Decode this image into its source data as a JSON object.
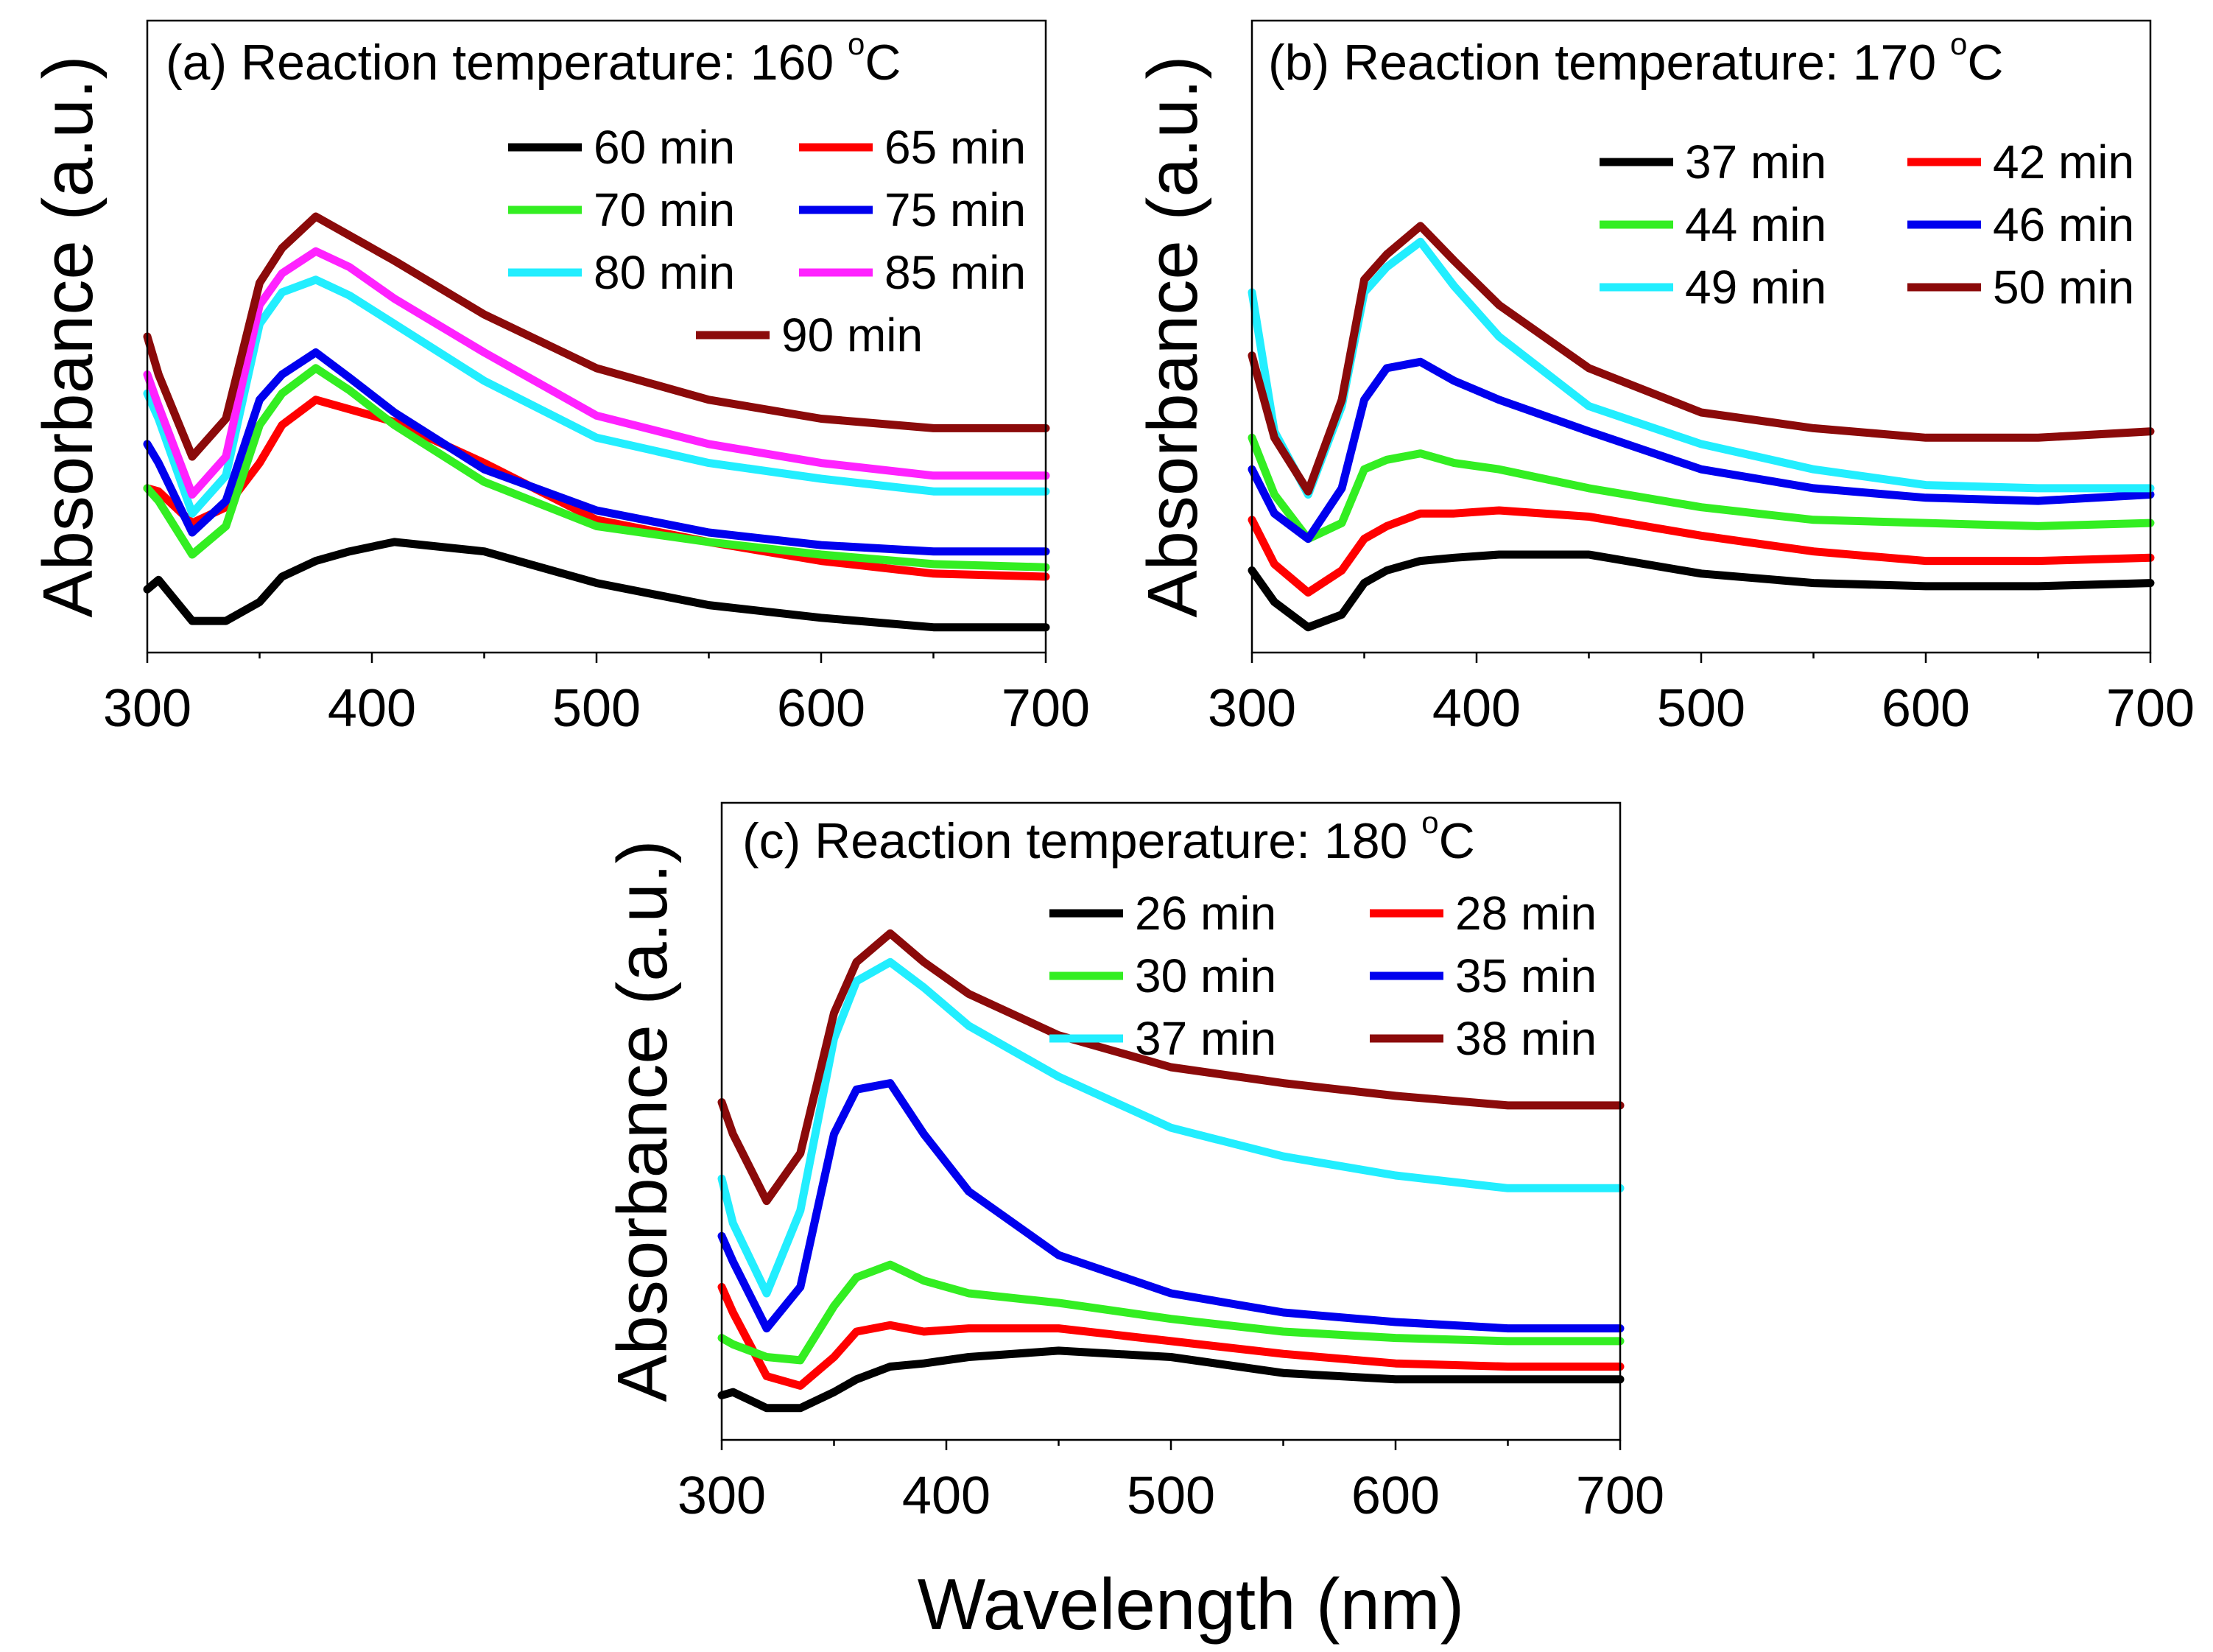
{
  "figure": {
    "y_label": "Absorbance (a.u.)",
    "x_label": "Wavelength (nm)",
    "title_unit": "C",
    "degree_symbol": "o"
  },
  "colors": {
    "black": "#000000",
    "red": "#ff0000",
    "green": "#33ee22",
    "blue": "#0000ee",
    "cyan": "#22eeff",
    "magenta": "#ff22ff",
    "darkred": "#8b0a0a"
  },
  "chart_data": [
    {
      "type": "line",
      "title": "(a) Reaction temperature: 160",
      "xlabel": "Wavelength (nm)",
      "ylabel": "Absorbance (a.u.)",
      "xlim": [
        300,
        700
      ],
      "xticks": [
        300,
        400,
        500,
        600,
        700
      ],
      "tick_labels": [
        "300",
        "400",
        "500",
        "600",
        "700"
      ],
      "ylim": [
        0,
        10
      ],
      "x": [
        300,
        305,
        320,
        335,
        350,
        360,
        375,
        390,
        410,
        450,
        500,
        550,
        600,
        650,
        700
      ],
      "series": [
        {
          "name": "60 min",
          "color": "#000000",
          "values": [
            1.0,
            1.15,
            0.5,
            0.5,
            0.8,
            1.2,
            1.45,
            1.6,
            1.75,
            1.6,
            1.1,
            0.75,
            0.55,
            0.4,
            0.4
          ]
        },
        {
          "name": "65 min",
          "color": "#ff0000",
          "values": [
            2.6,
            2.55,
            2.05,
            2.3,
            3.0,
            3.6,
            4.0,
            3.85,
            3.65,
            3.0,
            2.1,
            1.75,
            1.45,
            1.25,
            1.2
          ]
        },
        {
          "name": "70 min",
          "color": "#33ee22",
          "values": [
            2.6,
            2.4,
            1.55,
            2.0,
            3.6,
            4.1,
            4.5,
            4.15,
            3.6,
            2.7,
            2.0,
            1.75,
            1.55,
            1.4,
            1.35
          ]
        },
        {
          "name": "75 min",
          "color": "#0000ee",
          "values": [
            3.3,
            3.0,
            1.9,
            2.4,
            4.0,
            4.4,
            4.75,
            4.35,
            3.8,
            2.9,
            2.25,
            1.9,
            1.7,
            1.6,
            1.6
          ]
        },
        {
          "name": "80 min",
          "color": "#22eeff",
          "values": [
            4.1,
            3.7,
            2.2,
            2.8,
            5.2,
            5.7,
            5.9,
            5.65,
            5.2,
            4.3,
            3.4,
            3.0,
            2.75,
            2.55,
            2.55
          ]
        },
        {
          "name": "85 min",
          "color": "#ff22ff",
          "values": [
            4.4,
            3.9,
            2.5,
            3.1,
            5.5,
            6.0,
            6.35,
            6.1,
            5.6,
            4.75,
            3.75,
            3.3,
            3.0,
            2.8,
            2.8
          ]
        },
        {
          "name": "90 min",
          "color": "#8b0a0a",
          "values": [
            5.0,
            4.4,
            3.1,
            3.7,
            5.85,
            6.4,
            6.9,
            6.6,
            6.2,
            5.35,
            4.5,
            4.0,
            3.7,
            3.55,
            3.55
          ]
        }
      ]
    },
    {
      "type": "line",
      "title": "(b) Reaction temperature: 170",
      "xlabel": "Wavelength (nm)",
      "ylabel": "Absorbance (a.u.)",
      "xlim": [
        300,
        700
      ],
      "xticks": [
        300,
        400,
        500,
        600,
        700
      ],
      "tick_labels": [
        "300",
        "400",
        "500",
        "600",
        "700"
      ],
      "ylim": [
        0,
        10
      ],
      "x": [
        300,
        310,
        325,
        340,
        350,
        360,
        375,
        390,
        410,
        450,
        500,
        550,
        600,
        650,
        700
      ],
      "series": [
        {
          "name": "37 min",
          "color": "#000000",
          "values": [
            1.3,
            0.8,
            0.4,
            0.6,
            1.1,
            1.3,
            1.45,
            1.5,
            1.55,
            1.55,
            1.25,
            1.1,
            1.05,
            1.05,
            1.1
          ]
        },
        {
          "name": "42 min",
          "color": "#ff0000",
          "values": [
            2.1,
            1.4,
            0.95,
            1.3,
            1.8,
            2.0,
            2.2,
            2.2,
            2.25,
            2.15,
            1.85,
            1.6,
            1.45,
            1.45,
            1.5
          ]
        },
        {
          "name": "44 min",
          "color": "#33ee22",
          "values": [
            3.4,
            2.5,
            1.8,
            2.05,
            2.9,
            3.05,
            3.15,
            3.0,
            2.9,
            2.6,
            2.3,
            2.1,
            2.05,
            2.0,
            2.05
          ]
        },
        {
          "name": "46 min",
          "color": "#0000ee",
          "values": [
            2.9,
            2.2,
            1.8,
            2.6,
            4.0,
            4.5,
            4.6,
            4.3,
            4.0,
            3.5,
            2.9,
            2.6,
            2.45,
            2.4,
            2.5
          ]
        },
        {
          "name": "49 min",
          "color": "#22eeff",
          "values": [
            5.7,
            3.5,
            2.5,
            3.9,
            5.7,
            6.1,
            6.5,
            5.8,
            5.0,
            3.9,
            3.3,
            2.9,
            2.65,
            2.6,
            2.6
          ]
        },
        {
          "name": "50 min",
          "color": "#8b0a0a",
          "values": [
            4.7,
            3.4,
            2.55,
            4.0,
            5.9,
            6.3,
            6.75,
            6.2,
            5.5,
            4.5,
            3.8,
            3.55,
            3.4,
            3.4,
            3.5
          ]
        }
      ]
    },
    {
      "type": "line",
      "title": "(c) Reaction temperature: 180",
      "xlabel": "Wavelength (nm)",
      "ylabel": "Absorbance (a.u.)",
      "xlim": [
        300,
        700
      ],
      "xticks": [
        300,
        400,
        500,
        600,
        700
      ],
      "tick_labels": [
        "300",
        "400",
        "500",
        "600",
        "700"
      ],
      "ylim": [
        0,
        10
      ],
      "x": [
        300,
        305,
        320,
        335,
        350,
        360,
        375,
        390,
        410,
        450,
        500,
        550,
        600,
        650,
        700
      ],
      "series": [
        {
          "name": "26 min",
          "color": "#000000",
          "values": [
            0.7,
            0.75,
            0.5,
            0.5,
            0.75,
            0.95,
            1.15,
            1.2,
            1.3,
            1.4,
            1.3,
            1.05,
            0.95,
            0.95,
            0.95
          ]
        },
        {
          "name": "28 min",
          "color": "#ff0000",
          "values": [
            2.4,
            2.0,
            1.0,
            0.85,
            1.3,
            1.7,
            1.8,
            1.7,
            1.75,
            1.75,
            1.55,
            1.35,
            1.2,
            1.15,
            1.15
          ]
        },
        {
          "name": "30 min",
          "color": "#33ee22",
          "values": [
            1.6,
            1.5,
            1.3,
            1.25,
            2.1,
            2.55,
            2.75,
            2.5,
            2.3,
            2.15,
            1.9,
            1.7,
            1.6,
            1.55,
            1.55
          ]
        },
        {
          "name": "35 min",
          "color": "#0000ee",
          "values": [
            3.2,
            2.8,
            1.75,
            2.4,
            4.8,
            5.5,
            5.6,
            4.8,
            3.9,
            2.9,
            2.3,
            2.0,
            1.85,
            1.75,
            1.75
          ]
        },
        {
          "name": "37 min",
          "color": "#22eeff",
          "values": [
            4.1,
            3.4,
            2.3,
            3.6,
            6.3,
            7.2,
            7.5,
            7.1,
            6.5,
            5.7,
            4.9,
            4.45,
            4.15,
            3.95,
            3.95
          ]
        },
        {
          "name": "38 min",
          "color": "#8b0a0a",
          "values": [
            5.3,
            4.8,
            3.75,
            4.5,
            6.7,
            7.5,
            7.95,
            7.5,
            7.0,
            6.35,
            5.85,
            5.6,
            5.4,
            5.25,
            5.25
          ]
        }
      ]
    }
  ]
}
